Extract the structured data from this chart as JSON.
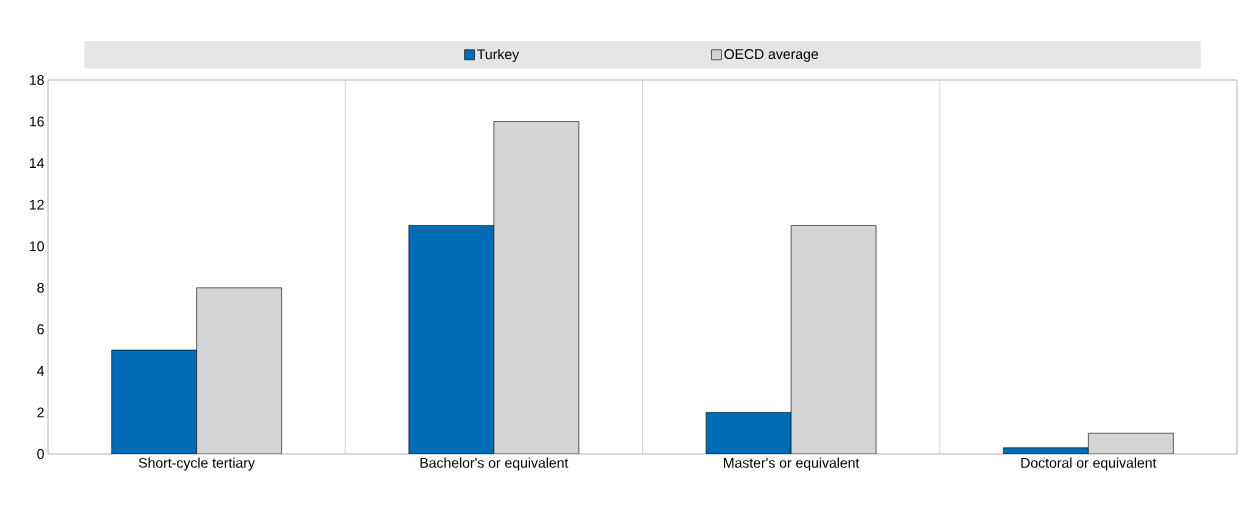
{
  "chart_data": {
    "type": "bar",
    "categories": [
      "Short-cycle tertiary",
      "Bachelor's or equivalent",
      "Master's or equivalent",
      "Doctoral or equivalent"
    ],
    "series": [
      {
        "name": "Turkey",
        "color": "#006bb6",
        "values": [
          5,
          11,
          2,
          0.3
        ]
      },
      {
        "name": "OECD average",
        "color": "#d3d4d6",
        "values": [
          8,
          16,
          11,
          1
        ]
      }
    ],
    "ylim": [
      0,
      18
    ],
    "yticks": [
      0,
      2,
      4,
      6,
      8,
      10,
      12,
      14,
      16,
      18
    ],
    "grid": "x",
    "legend": "top"
  }
}
